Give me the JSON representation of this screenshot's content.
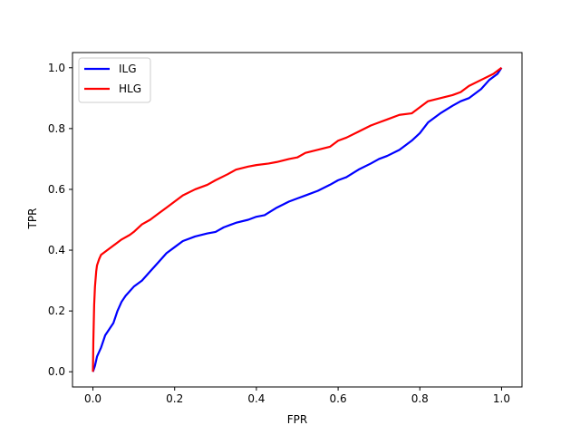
{
  "chart_data": {
    "type": "line",
    "title": "",
    "xlabel": "FPR",
    "ylabel": "TPR",
    "xlim": [
      -0.05,
      1.05
    ],
    "ylim": [
      -0.05,
      1.05
    ],
    "xticks": [
      0.0,
      0.2,
      0.4,
      0.6,
      0.8,
      1.0
    ],
    "yticks": [
      0.0,
      0.2,
      0.4,
      0.6,
      0.8,
      1.0
    ],
    "xtick_labels": [
      "0.0",
      "0.2",
      "0.4",
      "0.6",
      "0.8",
      "1.0"
    ],
    "ytick_labels": [
      "0.0",
      "0.2",
      "0.4",
      "0.6",
      "0.8",
      "1.0"
    ],
    "grid": false,
    "legend": "top-left",
    "series": [
      {
        "name": "ILG",
        "color": "#0000ff",
        "x": [
          0.0,
          0.005,
          0.01,
          0.02,
          0.03,
          0.04,
          0.05,
          0.06,
          0.07,
          0.08,
          0.1,
          0.12,
          0.14,
          0.16,
          0.18,
          0.2,
          0.22,
          0.25,
          0.28,
          0.3,
          0.32,
          0.35,
          0.38,
          0.4,
          0.42,
          0.45,
          0.48,
          0.5,
          0.52,
          0.55,
          0.58,
          0.6,
          0.62,
          0.65,
          0.68,
          0.7,
          0.72,
          0.75,
          0.78,
          0.8,
          0.82,
          0.85,
          0.88,
          0.9,
          0.92,
          0.95,
          0.97,
          0.99,
          1.0
        ],
        "y": [
          0.0,
          0.02,
          0.05,
          0.08,
          0.12,
          0.14,
          0.16,
          0.2,
          0.23,
          0.25,
          0.28,
          0.3,
          0.33,
          0.36,
          0.39,
          0.41,
          0.43,
          0.445,
          0.455,
          0.46,
          0.475,
          0.49,
          0.5,
          0.51,
          0.515,
          0.54,
          0.56,
          0.57,
          0.58,
          0.595,
          0.615,
          0.63,
          0.64,
          0.665,
          0.685,
          0.7,
          0.71,
          0.73,
          0.76,
          0.785,
          0.82,
          0.85,
          0.875,
          0.89,
          0.9,
          0.93,
          0.96,
          0.98,
          1.0
        ]
      },
      {
        "name": "HLG",
        "color": "#ff0000",
        "x": [
          0.0,
          0.001,
          0.003,
          0.005,
          0.008,
          0.01,
          0.015,
          0.02,
          0.03,
          0.05,
          0.07,
          0.09,
          0.1,
          0.12,
          0.14,
          0.16,
          0.18,
          0.2,
          0.22,
          0.25,
          0.28,
          0.3,
          0.33,
          0.35,
          0.38,
          0.4,
          0.43,
          0.45,
          0.48,
          0.5,
          0.52,
          0.55,
          0.58,
          0.6,
          0.62,
          0.65,
          0.68,
          0.7,
          0.72,
          0.75,
          0.78,
          0.8,
          0.82,
          0.85,
          0.88,
          0.9,
          0.92,
          0.95,
          0.98,
          1.0
        ],
        "y": [
          0.0,
          0.1,
          0.22,
          0.28,
          0.33,
          0.35,
          0.37,
          0.385,
          0.395,
          0.415,
          0.435,
          0.45,
          0.46,
          0.485,
          0.5,
          0.52,
          0.54,
          0.56,
          0.58,
          0.6,
          0.615,
          0.63,
          0.65,
          0.665,
          0.675,
          0.68,
          0.685,
          0.69,
          0.7,
          0.705,
          0.72,
          0.73,
          0.74,
          0.76,
          0.77,
          0.79,
          0.81,
          0.82,
          0.83,
          0.845,
          0.85,
          0.87,
          0.89,
          0.9,
          0.91,
          0.92,
          0.94,
          0.96,
          0.98,
          1.0
        ]
      }
    ]
  }
}
